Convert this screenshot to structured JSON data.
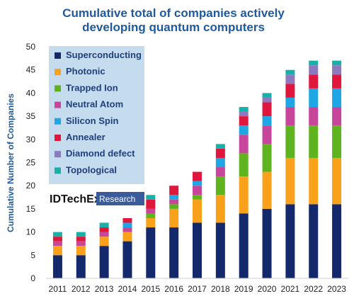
{
  "chart_data": {
    "type": "bar",
    "stacked": true,
    "title_lines": [
      "Cumulative total of companies actively",
      "developing quantum computers"
    ],
    "xlabel": "",
    "ylabel": "Cumulative Number of Companies",
    "ylim": [
      0,
      50
    ],
    "yticks": [
      0,
      5,
      10,
      15,
      20,
      25,
      30,
      35,
      40,
      45,
      50
    ],
    "grid": false,
    "legend_position": "top-left",
    "categories": [
      "2011",
      "2012",
      "2013",
      "2014",
      "2015",
      "2016",
      "2017",
      "2018",
      "2019",
      "2020",
      "2021",
      "2022",
      "2023"
    ],
    "series": [
      {
        "name": "Superconducting",
        "color": "#13296b",
        "values": [
          5,
          5,
          7,
          8,
          11,
          11,
          12,
          12,
          14,
          15,
          16,
          16,
          16
        ]
      },
      {
        "name": "Photonic",
        "color": "#f9a11b",
        "values": [
          2,
          2,
          2,
          2,
          2,
          4,
          5,
          6,
          8,
          8,
          10,
          10,
          10
        ]
      },
      {
        "name": "Trapped Ion",
        "color": "#5fb31f",
        "values": [
          0,
          0,
          0,
          0,
          1,
          1,
          1,
          4,
          5,
          6,
          7,
          7,
          7
        ]
      },
      {
        "name": "Neutral Atom",
        "color": "#c7469c",
        "values": [
          1,
          1,
          1,
          1,
          1,
          1,
          2,
          2,
          4,
          4,
          4,
          4,
          4
        ]
      },
      {
        "name": "Silicon Spin",
        "color": "#1ea7e4",
        "values": [
          0,
          0,
          0,
          1,
          0,
          1,
          1,
          2,
          2,
          2,
          2,
          4,
          4
        ]
      },
      {
        "name": "Annealer",
        "color": "#e0173c",
        "values": [
          1,
          1,
          1,
          1,
          2,
          2,
          2,
          2,
          2,
          3,
          3,
          3,
          3
        ]
      },
      {
        "name": "Diamond defect",
        "color": "#8c79c0",
        "values": [
          0,
          0,
          0,
          0,
          0,
          0,
          0,
          0,
          1,
          1,
          2,
          2,
          2
        ]
      },
      {
        "name": "Topological",
        "color": "#19b0a9",
        "values": [
          1,
          1,
          1,
          0,
          1,
          0,
          0,
          1,
          1,
          1,
          1,
          1,
          1
        ]
      }
    ],
    "totals": [
      10,
      10,
      12,
      13,
      18,
      20,
      23,
      29,
      37,
      40,
      45,
      47,
      47
    ]
  },
  "logo": {
    "brand": "IDTechEx",
    "tag": "Research"
  },
  "colors": {
    "title": "#1f5a9e",
    "legend_bg": "#c5dcef",
    "logo_tag_bg": "#3b5c9a"
  }
}
